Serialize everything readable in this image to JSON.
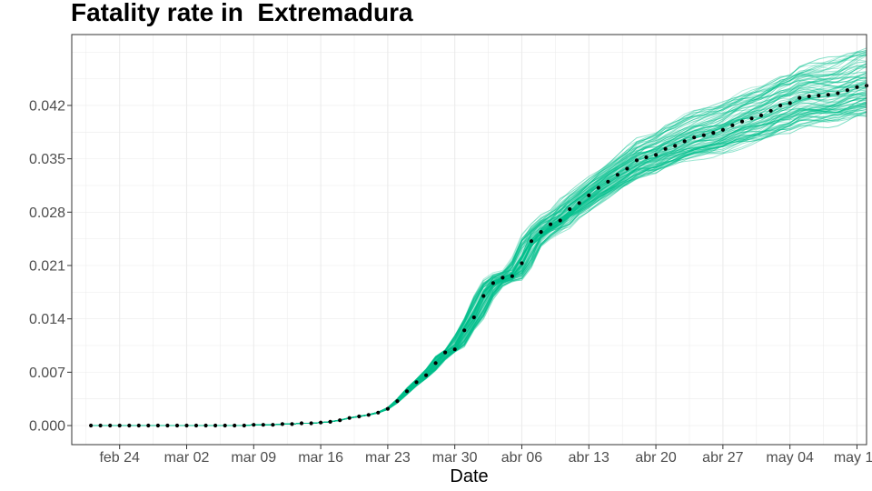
{
  "chart_data": {
    "type": "line",
    "title": "Fatality rate in  Extremadura",
    "xlabel": "Date",
    "ylabel": "",
    "x_range": [
      "2020-02-19",
      "2020-05-12"
    ],
    "ylim": [
      -0.0025,
      0.0513
    ],
    "x_ticks": [
      {
        "date": "2020-02-24",
        "label": "feb 24"
      },
      {
        "date": "2020-03-02",
        "label": "mar 02"
      },
      {
        "date": "2020-03-09",
        "label": "mar 09"
      },
      {
        "date": "2020-03-16",
        "label": "mar 16"
      },
      {
        "date": "2020-03-23",
        "label": "mar 23"
      },
      {
        "date": "2020-03-30",
        "label": "mar 30"
      },
      {
        "date": "2020-04-06",
        "label": "abr 06"
      },
      {
        "date": "2020-04-13",
        "label": "abr 13"
      },
      {
        "date": "2020-04-20",
        "label": "abr 20"
      },
      {
        "date": "2020-04-27",
        "label": "abr 27"
      },
      {
        "date": "2020-05-04",
        "label": "may 04"
      },
      {
        "date": "2020-05-11",
        "label": "may 11"
      }
    ],
    "y_ticks": [
      {
        "value": 0.0,
        "label": "0.000"
      },
      {
        "value": 0.007,
        "label": "0.007"
      },
      {
        "value": 0.014,
        "label": "0.014"
      },
      {
        "value": 0.021,
        "label": "0.021"
      },
      {
        "value": 0.028,
        "label": "0.028"
      },
      {
        "value": 0.035,
        "label": "0.035"
      },
      {
        "value": 0.042,
        "label": "0.042"
      }
    ],
    "grid": true,
    "legend": "none",
    "colors": {
      "simulations": "#00BF8C",
      "observed": "#000000",
      "panel_border": "#333333",
      "grid": "#EBEBEB"
    },
    "simulated_band": {
      "start_date": "2020-02-21",
      "end_date": "2020-05-09",
      "lower_end_value": 0.0405,
      "upper_end_value": 0.049,
      "count": 100
    },
    "series": [
      {
        "start_date": "2020-02-21",
        "values": [
          0.0,
          0.0,
          0.0,
          0.0,
          0.0,
          0.0,
          0.0,
          0.0,
          0.0,
          0.0,
          0.0,
          0.0,
          0.0,
          0.0,
          0.0,
          0.0,
          0.0,
          0.0001,
          0.0001,
          0.0001,
          0.0002,
          0.0002,
          0.0003,
          0.0003,
          0.0004,
          0.0005,
          0.0007,
          0.001,
          0.0012,
          0.0014,
          0.0017,
          0.0022,
          0.0032,
          0.0045,
          0.0057,
          0.0066,
          0.0082,
          0.0096,
          0.01,
          0.0125,
          0.0142,
          0.017,
          0.0187,
          0.0194,
          0.0196,
          0.0213,
          0.0242,
          0.0254,
          0.0264,
          0.0269,
          0.0284,
          0.0292,
          0.0302,
          0.0312,
          0.032,
          0.0329,
          0.0337,
          0.0348,
          0.0352,
          0.0355,
          0.0363,
          0.0367,
          0.0373,
          0.0378,
          0.0381,
          0.0384,
          0.0388,
          0.0394,
          0.0399,
          0.0403,
          0.0407,
          0.0413,
          0.042,
          0.0423,
          0.043,
          0.0432,
          0.0433,
          0.0434,
          0.0436,
          0.044,
          0.0444,
          0.0446
        ]
      }
    ]
  }
}
